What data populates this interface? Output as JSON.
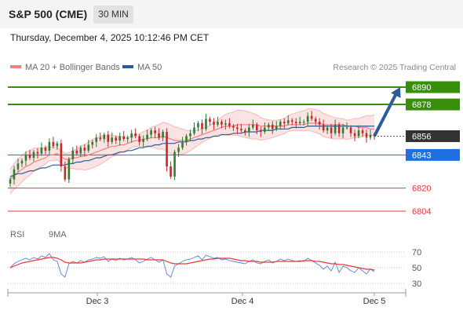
{
  "header": {
    "title": "S&P 500 (CME)",
    "timeframe": "30 MIN"
  },
  "datetime": "Thursday, December 4, 2025 10:12:46 PM CET",
  "legend": {
    "ma20_label": "MA 20 + Bollinger Bands",
    "ma50_label": "MA 50",
    "ma20_color": "#f08080",
    "ma50_color": "#2d5b99",
    "credit": "Research © 2025 Trading Central"
  },
  "rsi_legend": {
    "rsi_label": "RSI",
    "ma9_label": "9MA",
    "rsi_color": "#5b7fd6",
    "ma9_color": "#e53935"
  },
  "chart_data": [
    {
      "type": "candlestick",
      "x_labels": [
        "Dec 3",
        "Dec 4",
        "Dec 5"
      ],
      "ylim": [
        6798,
        6896
      ],
      "levels": [
        {
          "label": "6890",
          "value": 6890,
          "kind": "target",
          "color": "#3a8f0a"
        },
        {
          "label": "6878",
          "value": 6878,
          "kind": "target",
          "color": "#3a8f0a"
        },
        {
          "label": "6856",
          "value": 6856,
          "kind": "current",
          "color": "#333333"
        },
        {
          "label": "6843",
          "value": 6843,
          "kind": "pivot",
          "color": "#1e6fe0"
        },
        {
          "label": "6820",
          "value": 6820,
          "kind": "support",
          "color": "#e53935"
        },
        {
          "label": "6804",
          "value": 6804,
          "kind": "support",
          "color": "#e53935"
        }
      ],
      "close": [
        6826,
        6833,
        6837,
        6839,
        6843,
        6841,
        6845,
        6844,
        6848,
        6846,
        6852,
        6849,
        6851,
        6835,
        6826,
        6840,
        6846,
        6844,
        6848,
        6846,
        6850,
        6852,
        6855,
        6854,
        6857,
        6852,
        6855,
        6853,
        6856,
        6854,
        6855,
        6858,
        6856,
        6852,
        6854,
        6857,
        6860,
        6858,
        6855,
        6859,
        6835,
        6828,
        6845,
        6848,
        6852,
        6856,
        6858,
        6862,
        6865,
        6861,
        6868,
        6866,
        6864,
        6866,
        6864,
        6865,
        6863,
        6862,
        6861,
        6860,
        6859,
        6862,
        6864,
        6860,
        6859,
        6862,
        6864,
        6861,
        6863,
        6866,
        6865,
        6867,
        6866,
        6865,
        6866,
        6866,
        6870,
        6868,
        6866,
        6864,
        6860,
        6862,
        6858,
        6864,
        6858,
        6862,
        6862,
        6858,
        6856,
        6860,
        6858,
        6855,
        6857,
        6856
      ],
      "ma20": [
        6826,
        6829,
        6831,
        6833,
        6835,
        6836,
        6838,
        6839,
        6840,
        6841,
        6843,
        6843,
        6844,
        6842,
        6840,
        6840,
        6841,
        6841,
        6842,
        6842,
        6843,
        6844,
        6845,
        6846,
        6847,
        6848,
        6849,
        6849,
        6850,
        6850,
        6851,
        6852,
        6853,
        6853,
        6854,
        6854,
        6855,
        6855,
        6855,
        6856,
        6855,
        6854,
        6853,
        6853,
        6853,
        6853,
        6854,
        6855,
        6856,
        6857,
        6858,
        6859,
        6860,
        6861,
        6862,
        6863,
        6863,
        6863,
        6864,
        6864,
        6864,
        6864,
        6864,
        6864,
        6863,
        6863,
        6863,
        6863,
        6863,
        6863,
        6863,
        6864,
        6864,
        6864,
        6864,
        6864,
        6865,
        6865,
        6865,
        6865,
        6864,
        6864,
        6864,
        6864,
        6864,
        6864,
        6863,
        6863,
        6863,
        6862,
        6862,
        6862,
        6861,
        6861
      ],
      "ma50": [
        6828,
        6829,
        6830,
        6830,
        6831,
        6832,
        6832,
        6833,
        6834,
        6834,
        6835,
        6836,
        6836,
        6836,
        6836,
        6837,
        6837,
        6838,
        6838,
        6839,
        6839,
        6840,
        6841,
        6841,
        6842,
        6843,
        6843,
        6844,
        6845,
        6845,
        6846,
        6846,
        6847,
        6848,
        6848,
        6849,
        6849,
        6850,
        6850,
        6851,
        6851,
        6851,
        6851,
        6852,
        6852,
        6852,
        6853,
        6853,
        6854,
        6854,
        6855,
        6855,
        6856,
        6856,
        6857,
        6857,
        6857,
        6858,
        6858,
        6858,
        6859,
        6859,
        6859,
        6859,
        6860,
        6860,
        6860,
        6860,
        6861,
        6861,
        6861,
        6861,
        6862,
        6862,
        6862,
        6862,
        6863,
        6863,
        6863,
        6863,
        6863,
        6863,
        6863,
        6863,
        6863,
        6863,
        6863,
        6863,
        6863,
        6863,
        6863,
        6863,
        6863,
        6863
      ],
      "forecast": {
        "from": 6856,
        "to": 6890
      }
    },
    {
      "type": "line",
      "name": "RSI",
      "ylim": [
        22,
        78
      ],
      "yticks": [
        70,
        50,
        30
      ],
      "series": [
        {
          "name": "RSI",
          "values": [
            50,
            55,
            58,
            60,
            62,
            60,
            63,
            61,
            65,
            63,
            68,
            60,
            58,
            42,
            38,
            55,
            58,
            56,
            59,
            57,
            60,
            61,
            63,
            62,
            64,
            58,
            61,
            59,
            62,
            60,
            61,
            63,
            60,
            56,
            58,
            61,
            63,
            60,
            57,
            60,
            42,
            38,
            52,
            55,
            58,
            60,
            61,
            63,
            65,
            60,
            66,
            64,
            62,
            63,
            60,
            61,
            59,
            58,
            57,
            56,
            55,
            58,
            60,
            56,
            55,
            58,
            60,
            56,
            58,
            61,
            59,
            61,
            59,
            58,
            59,
            58,
            62,
            59,
            56,
            53,
            48,
            52,
            46,
            57,
            44,
            52,
            50,
            46,
            44,
            50,
            46,
            42,
            48,
            45
          ]
        },
        {
          "name": "9MA",
          "values": [
            50,
            52,
            54,
            56,
            57,
            58,
            59,
            60,
            61,
            62,
            63,
            63,
            62,
            60,
            57,
            56,
            56,
            56,
            56,
            57,
            58,
            59,
            60,
            60,
            61,
            61,
            61,
            61,
            61,
            61,
            61,
            61,
            61,
            61,
            61,
            60,
            60,
            60,
            60,
            60,
            58,
            56,
            55,
            55,
            55,
            55,
            56,
            57,
            58,
            59,
            60,
            61,
            61,
            62,
            62,
            62,
            62,
            61,
            60,
            59,
            59,
            58,
            58,
            58,
            57,
            57,
            57,
            57,
            58,
            58,
            58,
            58,
            58,
            58,
            58,
            59,
            59,
            59,
            58,
            58,
            57,
            56,
            55,
            55,
            54,
            54,
            53,
            52,
            51,
            50,
            49,
            48,
            48,
            47
          ]
        }
      ]
    }
  ]
}
